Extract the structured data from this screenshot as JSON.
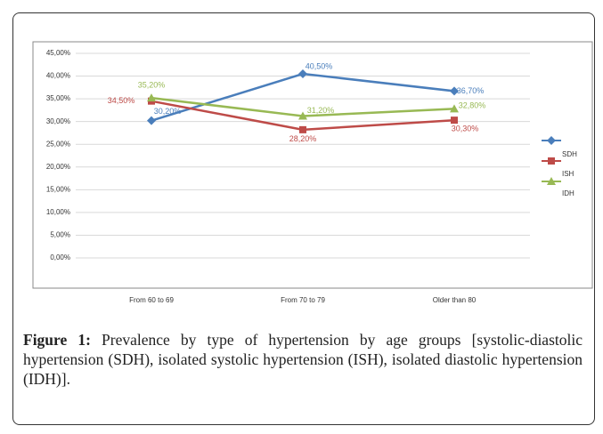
{
  "chart_data": {
    "type": "line",
    "categories": [
      "From 60 to 69",
      "From 70 to 79",
      "Older than 80"
    ],
    "series": [
      {
        "color": "#4a7ebb",
        "values": [
          30.2,
          40.5,
          36.7
        ],
        "value_labels": [
          "30,20%",
          "40,50%",
          "36,70%"
        ],
        "marker": "diamond"
      },
      {
        "color": "#be4b48",
        "values": [
          34.5,
          28.2,
          30.3
        ],
        "value_labels": [
          "34,50%",
          "28,20%",
          "30,30%"
        ],
        "marker": "square"
      },
      {
        "color": "#98b954",
        "values": [
          35.2,
          31.2,
          32.8
        ],
        "value_labels": [
          "35,20%",
          "31,20%",
          "32,80%"
        ],
        "marker": "triangle"
      }
    ],
    "legend_labels": [
      "SDH",
      "ISH",
      "IDH"
    ],
    "ylim": [
      0,
      45
    ],
    "yticks": [
      {
        "value": 0,
        "label": "0,00%"
      },
      {
        "value": 5,
        "label": "5,00%"
      },
      {
        "value": 10,
        "label": "10,00%"
      },
      {
        "value": 15,
        "label": "15,00%"
      },
      {
        "value": 20,
        "label": "20,00%"
      },
      {
        "value": 25,
        "label": "25,00%"
      },
      {
        "value": 30,
        "label": "30,00%"
      },
      {
        "value": 35,
        "label": "35,00%"
      },
      {
        "value": 40,
        "label": "40,00%"
      },
      {
        "value": 45,
        "label": "45,00%"
      }
    ],
    "grid": true
  },
  "caption": {
    "label": "Figure 1:",
    "text": "Prevalence by type of hypertension by age groups [systolic-diastolic hypertension (SDH), isolated systolic hypertension (ISH), isolated diastolic hypertension (IDH)]."
  }
}
